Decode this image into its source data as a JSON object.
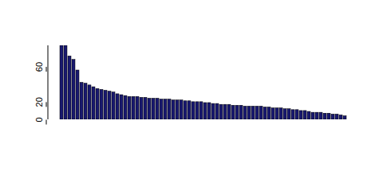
{
  "chart_data": {
    "type": "bar",
    "categories": [
      null,
      null,
      null,
      null,
      null,
      null,
      null,
      null,
      null,
      null,
      null,
      null,
      null,
      null,
      null,
      null,
      null,
      null,
      null,
      null,
      null,
      null,
      null,
      null,
      null,
      null,
      null,
      null,
      null,
      null,
      null,
      null,
      null,
      null,
      null,
      null,
      null,
      null,
      null,
      null,
      null,
      null,
      null,
      null,
      null,
      null,
      null,
      null,
      null,
      null,
      null,
      null,
      null,
      null,
      null,
      null,
      null,
      null,
      null,
      null,
      null,
      null,
      null,
      null,
      null,
      null,
      null,
      null,
      null,
      null,
      null,
      null
    ],
    "values": [
      84,
      84,
      72,
      68,
      56,
      42,
      41,
      39,
      37,
      35,
      34,
      33,
      32,
      31,
      29,
      28,
      27,
      26,
      26,
      26,
      25,
      25,
      24,
      24,
      24,
      23,
      23,
      23,
      22,
      22,
      22,
      21,
      21,
      20,
      20,
      20,
      19,
      19,
      18,
      18,
      17,
      17,
      17,
      16,
      16,
      16,
      15,
      15,
      15,
      15,
      15,
      14,
      14,
      13,
      13,
      13,
      12,
      12,
      11,
      11,
      10,
      10,
      9,
      8,
      8,
      8,
      7,
      7,
      6,
      6,
      5,
      4
    ],
    "color": "#191970",
    "ylim": [
      0,
      84
    ],
    "yticks": [
      0,
      20,
      60
    ],
    "tick_labels": "y"
  }
}
